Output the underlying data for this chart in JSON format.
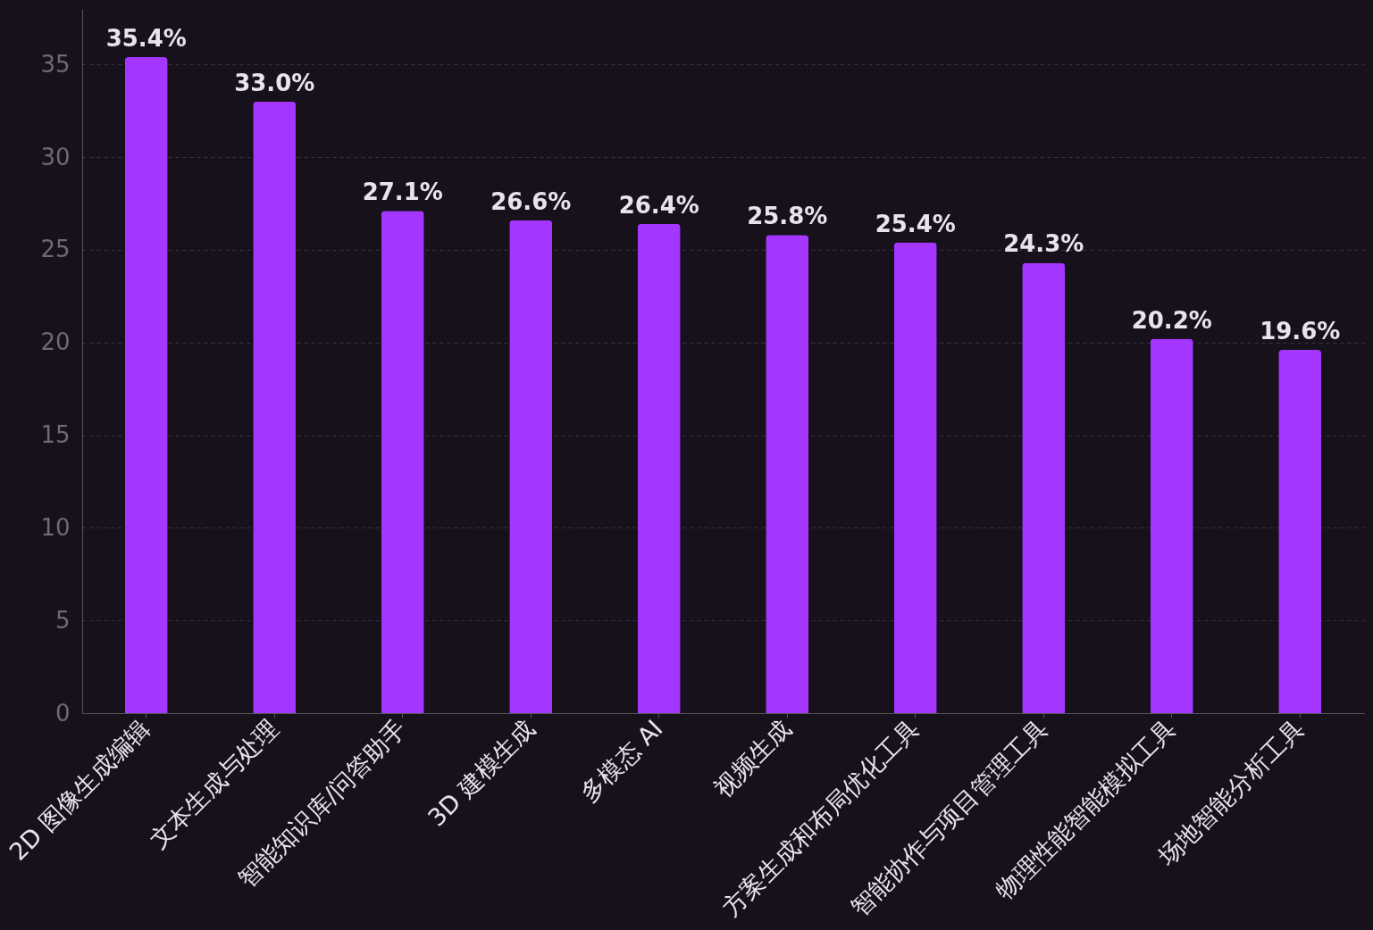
{
  "chart_data": {
    "type": "bar",
    "categories": [
      "2D 图像生成编辑",
      "文本生成与处理",
      "智能知识库/问答助手",
      "3D 建模生成",
      "多模态 AI",
      "视频生成",
      "方案生成和布局优化工具",
      "智能协作与项目管理工具",
      "物理性能智能模拟工具",
      "场地智能分析工具"
    ],
    "values": [
      35.4,
      33.0,
      27.1,
      26.6,
      26.4,
      25.8,
      25.4,
      24.3,
      20.2,
      19.6
    ],
    "value_labels": [
      "35.4%",
      "33.0%",
      "27.1%",
      "26.6%",
      "26.4%",
      "25.8%",
      "25.4%",
      "24.3%",
      "20.2%",
      "19.6%"
    ],
    "color": "#a436ff",
    "ylim": [
      0,
      38
    ],
    "yticks": [
      0,
      5,
      10,
      15,
      20,
      25,
      30,
      35
    ],
    "grid": "y"
  }
}
